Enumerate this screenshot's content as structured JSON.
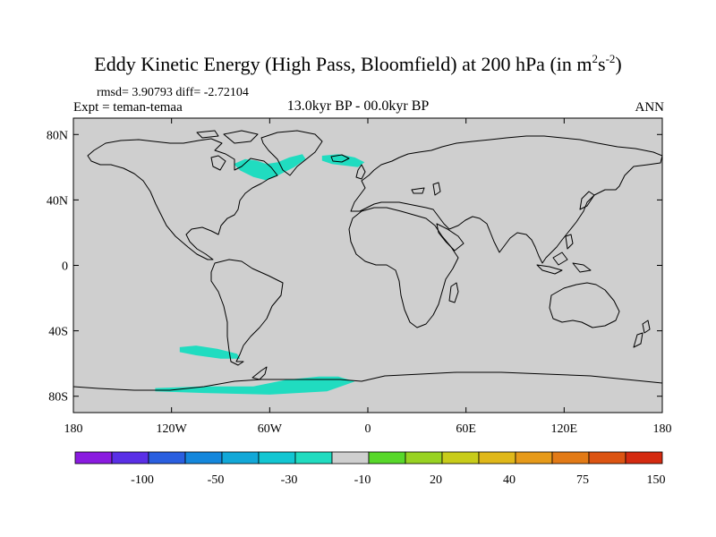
{
  "title": {
    "main": "Eddy Kinetic Energy (High Pass, Bloomfield) at 200 hPa (in m",
    "sup1": "2",
    "mid": "s",
    "sup2": "-2",
    "end": ")"
  },
  "stats": "rmsd= 3.90793 diff= -2.72104",
  "experiment": "Expt = teman-temaa",
  "period": "13.0kyr BP - 00.0kyr BP",
  "season": "ANN",
  "map": {
    "lon_range": [
      -180,
      180
    ],
    "lat_range": [
      -90,
      90
    ],
    "ocean_color": "#cfcfcf",
    "coast_color": "#000000",
    "x_ticks": [
      {
        "value": -180,
        "label": "180"
      },
      {
        "value": -120,
        "label": "120W"
      },
      {
        "value": -60,
        "label": "60W"
      },
      {
        "value": 0,
        "label": "0"
      },
      {
        "value": 60,
        "label": "60E"
      },
      {
        "value": 120,
        "label": "120E"
      },
      {
        "value": 180,
        "label": "180"
      }
    ],
    "y_ticks": [
      {
        "value": 80,
        "label": "80N"
      },
      {
        "value": 40,
        "label": "40N"
      },
      {
        "value": 0,
        "label": "0"
      },
      {
        "value": -40,
        "label": "40S"
      },
      {
        "value": -80,
        "label": "80S"
      }
    ],
    "anomaly_regions": [
      {
        "name": "north-atlantic-west",
        "color": "#20dcc0",
        "lonlat": [
          [
            -82,
            62
          ],
          [
            -75,
            65
          ],
          [
            -68,
            64
          ],
          [
            -62,
            62
          ],
          [
            -55,
            63
          ],
          [
            -48,
            66
          ],
          [
            -40,
            68
          ],
          [
            -38,
            65
          ],
          [
            -45,
            60
          ],
          [
            -55,
            55
          ],
          [
            -62,
            52
          ],
          [
            -70,
            54
          ],
          [
            -78,
            58
          ]
        ]
      },
      {
        "name": "north-atlantic-east",
        "color": "#20dcc0",
        "lonlat": [
          [
            -28,
            67
          ],
          [
            -18,
            68
          ],
          [
            -8,
            66
          ],
          [
            -2,
            63
          ],
          [
            -6,
            60
          ],
          [
            -14,
            61
          ],
          [
            -22,
            62
          ],
          [
            -28,
            64
          ]
        ]
      },
      {
        "name": "south-pacific",
        "color": "#20dcc0",
        "lonlat": [
          [
            -115,
            -50
          ],
          [
            -105,
            -49
          ],
          [
            -92,
            -51
          ],
          [
            -80,
            -54
          ],
          [
            -78,
            -57
          ],
          [
            -90,
            -57
          ],
          [
            -105,
            -55
          ],
          [
            -115,
            -53
          ]
        ]
      },
      {
        "name": "southern-ocean",
        "color": "#20dcc0",
        "lonlat": [
          [
            -130,
            -75
          ],
          [
            -100,
            -74
          ],
          [
            -70,
            -74
          ],
          [
            -50,
            -70
          ],
          [
            -30,
            -68
          ],
          [
            -18,
            -68
          ],
          [
            -8,
            -71
          ],
          [
            -25,
            -77
          ],
          [
            -60,
            -79
          ],
          [
            -100,
            -78
          ],
          [
            -130,
            -77
          ]
        ]
      }
    ]
  },
  "colorbar": {
    "colors": [
      "#8a1be0",
      "#5a2fe6",
      "#2a5fe0",
      "#1487dc",
      "#12a8d8",
      "#12c6d2",
      "#20dcc0",
      "#cfcfcf",
      "#58d82a",
      "#98d222",
      "#c8cc1a",
      "#e0b81a",
      "#e69a1a",
      "#e27a16",
      "#dc5412",
      "#d42a10"
    ],
    "labels": [
      "-100",
      "-50",
      "-30",
      "-10",
      "20",
      "40",
      "75",
      "150"
    ]
  }
}
